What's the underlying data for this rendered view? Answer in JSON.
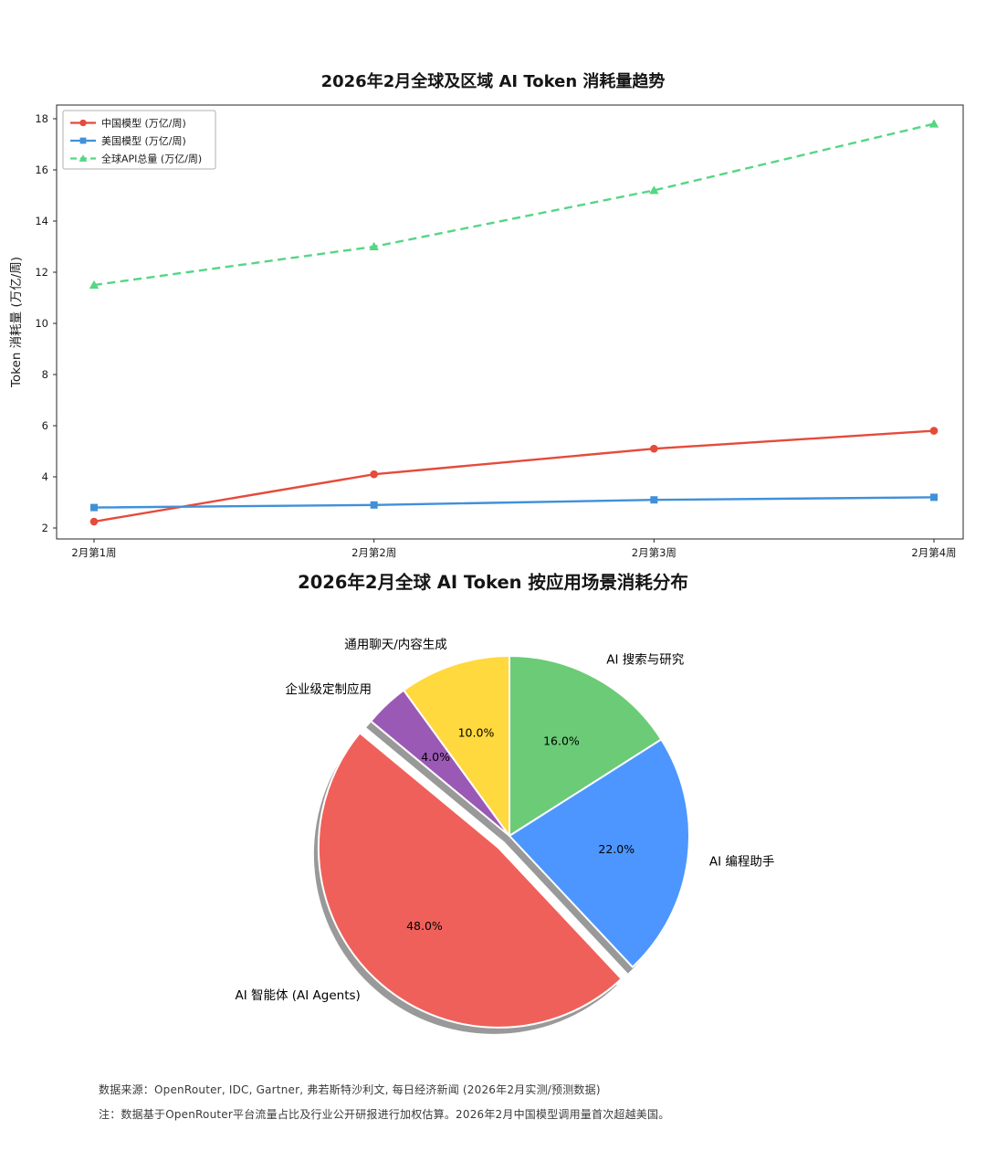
{
  "chart_data": [
    {
      "type": "line",
      "title": "2026年2月全球及区域 AI Token 消耗量趋势",
      "xlabel": "",
      "ylabel": "Token 消耗量 (万亿/周)",
      "categories": [
        "2月第1周",
        "2月第2周",
        "2月第3周",
        "2月第4周"
      ],
      "series": [
        {
          "name": "中国模型 (万亿/周)",
          "values": [
            2.25,
            4.1,
            5.1,
            5.8
          ],
          "color": "#E64A3B",
          "marker": "circle",
          "dash": "solid"
        },
        {
          "name": "美国模型 (万亿/周)",
          "values": [
            2.8,
            2.9,
            3.1,
            3.2
          ],
          "color": "#4090D9",
          "marker": "square",
          "dash": "solid"
        },
        {
          "name": "全球API总量 (万亿/周)",
          "values": [
            11.5,
            13.0,
            15.2,
            17.8
          ],
          "color": "#55D684",
          "marker": "triangle",
          "dash": "dashed"
        }
      ],
      "ylim": [
        1.5,
        18.6
      ],
      "yticks": [
        2,
        4,
        6,
        8,
        10,
        12,
        14,
        16,
        18
      ],
      "grid": false,
      "legend_position": "upper-left"
    },
    {
      "type": "pie",
      "title": "2026年2月全球 AI Token 按应用场景消耗分布",
      "labels": [
        "AI 搜索与研究",
        "AI 编程助手",
        "AI 智能体 (AI Agents)",
        "企业级定制应用",
        "通用聊天/内容生成"
      ],
      "values": [
        16.0,
        22.0,
        48.0,
        4.0,
        10.0
      ],
      "colors": [
        "#6BCB77",
        "#4D96FF",
        "#F0605A",
        "#9B59B6",
        "#FFD93D"
      ],
      "explode": [
        0,
        0,
        0.09,
        0,
        0
      ],
      "start_angle_deg_from_top_clockwise": 0,
      "shadow": true,
      "shadow_color": "#999999",
      "edge_color": "#ffffff"
    }
  ],
  "footer": {
    "source": "数据来源：OpenRouter, IDC, Gartner, 弗若斯特沙利文, 每日经济新闻 (2026年2月实测/预测数据)",
    "note": "注：数据基于OpenRouter平台流量占比及行业公开研报进行加权估算。2026年2月中国模型调用量首次超越美国。"
  }
}
